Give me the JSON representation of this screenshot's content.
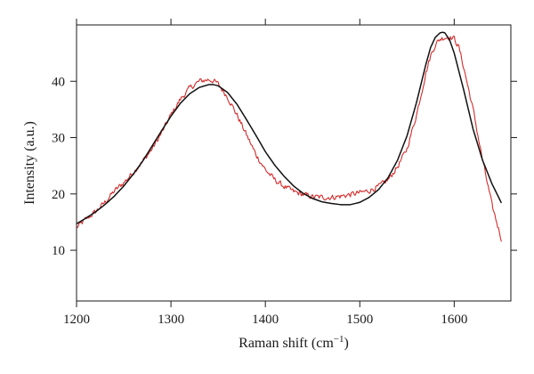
{
  "chart_data": {
    "type": "line",
    "title": "",
    "xlabel": "Raman shift (cm",
    "xlabel_superscript": "−1",
    "xlabel_suffix": ")",
    "ylabel": "Intensity (a.u.)",
    "xlim": [
      1200,
      1660
    ],
    "ylim": [
      1,
      50
    ],
    "xticks": [
      1200,
      1300,
      1400,
      1500,
      1600
    ],
    "yticks": [
      10,
      20,
      30,
      40
    ],
    "grid": false,
    "series": [
      {
        "color": "#d42a2a",
        "style": "noisy",
        "x": [
          1200,
          1210,
          1220,
          1230,
          1240,
          1250,
          1260,
          1270,
          1280,
          1290,
          1300,
          1310,
          1320,
          1330,
          1340,
          1345,
          1350,
          1360,
          1370,
          1380,
          1390,
          1400,
          1410,
          1420,
          1430,
          1440,
          1450,
          1460,
          1470,
          1480,
          1490,
          1500,
          1510,
          1520,
          1530,
          1540,
          1550,
          1560,
          1570,
          1575,
          1580,
          1585,
          1590,
          1595,
          1600,
          1605,
          1610,
          1620,
          1630,
          1640,
          1650
        ],
        "y": [
          14.0,
          15.5,
          16.8,
          18.5,
          20.5,
          22.0,
          23.8,
          25.8,
          28.0,
          30.8,
          34.0,
          36.8,
          38.8,
          40.0,
          40.3,
          40.1,
          39.5,
          37.2,
          34.0,
          30.5,
          27.0,
          24.3,
          22.5,
          21.3,
          20.4,
          19.9,
          19.5,
          19.4,
          19.4,
          19.6,
          19.9,
          20.2,
          20.6,
          21.3,
          22.5,
          24.8,
          28.0,
          34.0,
          41.5,
          44.5,
          46.5,
          47.5,
          47.8,
          47.8,
          47.6,
          46.0,
          42.5,
          35.0,
          26.0,
          18.0,
          12.0
        ]
      },
      {
        "color": "#111111",
        "style": "smooth",
        "x": [
          1200,
          1210,
          1220,
          1230,
          1240,
          1250,
          1260,
          1270,
          1280,
          1290,
          1300,
          1310,
          1320,
          1330,
          1340,
          1345,
          1350,
          1360,
          1370,
          1380,
          1390,
          1400,
          1410,
          1420,
          1430,
          1440,
          1450,
          1460,
          1470,
          1480,
          1490,
          1500,
          1510,
          1520,
          1530,
          1540,
          1550,
          1560,
          1570,
          1575,
          1580,
          1585,
          1588,
          1590,
          1595,
          1600,
          1610,
          1620,
          1630,
          1640,
          1650
        ],
        "y": [
          14.7,
          15.7,
          16.8,
          18.1,
          19.6,
          21.4,
          23.5,
          25.8,
          28.5,
          31.2,
          33.8,
          36.1,
          37.8,
          38.9,
          39.4,
          39.4,
          39.2,
          38.0,
          35.9,
          33.2,
          30.4,
          27.5,
          25.1,
          23.1,
          21.4,
          20.1,
          19.2,
          18.6,
          18.3,
          18.1,
          18.1,
          18.5,
          19.4,
          20.8,
          22.9,
          26.0,
          30.3,
          36.2,
          43.0,
          46.0,
          47.8,
          48.6,
          48.7,
          48.6,
          47.4,
          45.0,
          38.5,
          31.5,
          26.0,
          21.8,
          18.4
        ]
      }
    ]
  }
}
